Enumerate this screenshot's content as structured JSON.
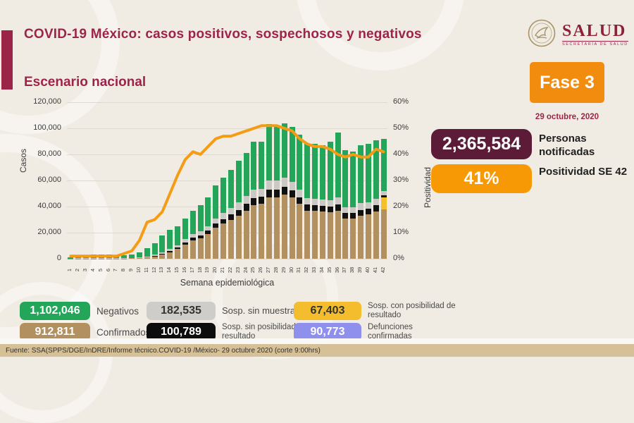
{
  "header": {
    "title": "COVID-19 México: casos positivos, sospechosos y negativos",
    "subtitle": "Escenario nacional"
  },
  "logo": {
    "name": "SALUD",
    "subtitle": "SECRETARÍA DE SALUD"
  },
  "phase_badge": {
    "label": "Fase 3",
    "date": "29 octubre, 2020"
  },
  "stats": [
    {
      "value": "2,365,584",
      "label": "Personas notificadas",
      "color": "#5c1c38"
    },
    {
      "value": "41%",
      "label": "Positividad SE 42",
      "color": "#f79905"
    }
  ],
  "legend": [
    {
      "value": "1,102,046",
      "label": "Negativos",
      "color": "#24a65a",
      "text_color": "#ffffff"
    },
    {
      "value": "182,535",
      "label": "Sosp. sin muestra",
      "color": "#cfcdc9",
      "text_color": "#333333"
    },
    {
      "value": "67,403",
      "label": "Sosp. con posibilidad de resultado",
      "color": "#f3bd2e",
      "text_color": "#333333"
    },
    {
      "value": "912,811",
      "label": "Confirmados",
      "color": "#b3905f",
      "text_color": "#ffffff"
    },
    {
      "value": "100,789",
      "label": "Sosp. sin posibilidad de resultado",
      "color": "#0d0d0d",
      "text_color": "#ffffff"
    },
    {
      "value": "90,773",
      "label": "Defunciones confirmadas",
      "color": "#8f90ee",
      "text_color": "#ffffff"
    }
  ],
  "footer": {
    "source": "Fuente: SSA(SPPS/DGE/InDRE/Informe técnico.COVID-19 /México- 29 octubre 2020 (corte 9:00hrs)"
  },
  "chart_data": {
    "type": "bar",
    "subtype": "stacked-bars-with-line",
    "title": "Escenario nacional",
    "xlabel": "Semana epidemiológica",
    "ylabel_left": "Casos",
    "ylabel_right": "Positividad",
    "ylim_left": [
      0,
      120000
    ],
    "ylim_right_pct": [
      0,
      60
    ],
    "yticks_left": [
      "120,000",
      "100,000",
      "80,000",
      "60,000",
      "40,000",
      "20,000",
      "0"
    ],
    "yticks_right": [
      "60%",
      "50%",
      "40%",
      "30%",
      "20%",
      "10%",
      "0%"
    ],
    "grid": true,
    "x": [
      1,
      2,
      3,
      4,
      5,
      6,
      7,
      8,
      9,
      10,
      11,
      12,
      13,
      14,
      15,
      16,
      17,
      18,
      19,
      20,
      21,
      22,
      23,
      24,
      25,
      26,
      27,
      28,
      29,
      30,
      31,
      32,
      33,
      34,
      35,
      36,
      37,
      38,
      39,
      40,
      41,
      42
    ],
    "series": [
      {
        "name": "Confirmados",
        "color": "#b3905f",
        "values": [
          100,
          150,
          200,
          250,
          250,
          250,
          250,
          250,
          300,
          500,
          1000,
          1900,
          3000,
          5000,
          7500,
          11000,
          14000,
          15500,
          19000,
          24000,
          27000,
          30000,
          33000,
          37000,
          41000,
          42000,
          47000,
          47000,
          49000,
          47000,
          42000,
          37000,
          36500,
          36000,
          35500,
          37000,
          31000,
          31000,
          33000,
          34000,
          36000,
          38000
        ]
      },
      {
        "name": "Sosp. con posibilidad de resultado",
        "color": "#f5c02a",
        "values": [
          0,
          0,
          0,
          0,
          0,
          0,
          0,
          0,
          0,
          0,
          0,
          0,
          0,
          0,
          0,
          0,
          0,
          0,
          0,
          0,
          0,
          0,
          0,
          0,
          0,
          0,
          0,
          0,
          0,
          0,
          0,
          0,
          0,
          0,
          0,
          0,
          0,
          0,
          0,
          0,
          0,
          9000
        ]
      },
      {
        "name": "Sosp. sin posibilidad de resultado",
        "color": "#111111",
        "values": [
          0,
          0,
          0,
          0,
          0,
          0,
          0,
          0,
          0,
          100,
          200,
          400,
          800,
          1000,
          1200,
          1500,
          2000,
          2200,
          2500,
          3000,
          3500,
          4000,
          4500,
          5000,
          5500,
          5500,
          6000,
          6000,
          6000,
          5500,
          5000,
          4500,
          4500,
          4500,
          4500,
          4500,
          4000,
          4000,
          4500,
          4500,
          5000,
          1500
        ]
      },
      {
        "name": "Sosp. sin muestra",
        "color": "#cbc9c5",
        "values": [
          100,
          150,
          200,
          200,
          200,
          200,
          200,
          200,
          250,
          300,
          500,
          800,
          1200,
          1500,
          1800,
          2500,
          3000,
          3300,
          3500,
          4000,
          4500,
          5000,
          5500,
          6000,
          6500,
          6000,
          7000,
          7000,
          7000,
          6500,
          6000,
          5000,
          5000,
          5000,
          5000,
          5500,
          4500,
          4500,
          5000,
          5000,
          5000,
          3500
        ]
      },
      {
        "name": "Negativos",
        "color": "#24a65a",
        "values": [
          1000,
          1400,
          2000,
          2600,
          2800,
          2800,
          2300,
          2100,
          2700,
          4100,
          6300,
          8900,
          13000,
          14500,
          14500,
          16000,
          18000,
          20000,
          22000,
          25000,
          27000,
          29000,
          32000,
          33000,
          37000,
          36500,
          43000,
          42000,
          42000,
          42000,
          42000,
          41500,
          42000,
          41500,
          45000,
          50000,
          43500,
          42500,
          44500,
          44500,
          45000,
          40000
        ]
      }
    ],
    "line": {
      "name": "Positividad",
      "color": "#f49c15",
      "axis": "right",
      "values_pct": [
        1,
        1,
        1,
        1,
        1,
        1,
        1,
        2,
        3,
        7,
        14,
        15,
        18,
        25,
        32,
        38,
        41,
        40,
        43,
        46,
        47,
        47,
        48,
        49,
        50,
        51,
        51,
        51,
        50,
        49,
        46,
        44,
        43,
        43,
        42,
        40,
        39,
        40,
        39,
        39,
        42,
        41
      ]
    },
    "legend_position": "bottom"
  }
}
